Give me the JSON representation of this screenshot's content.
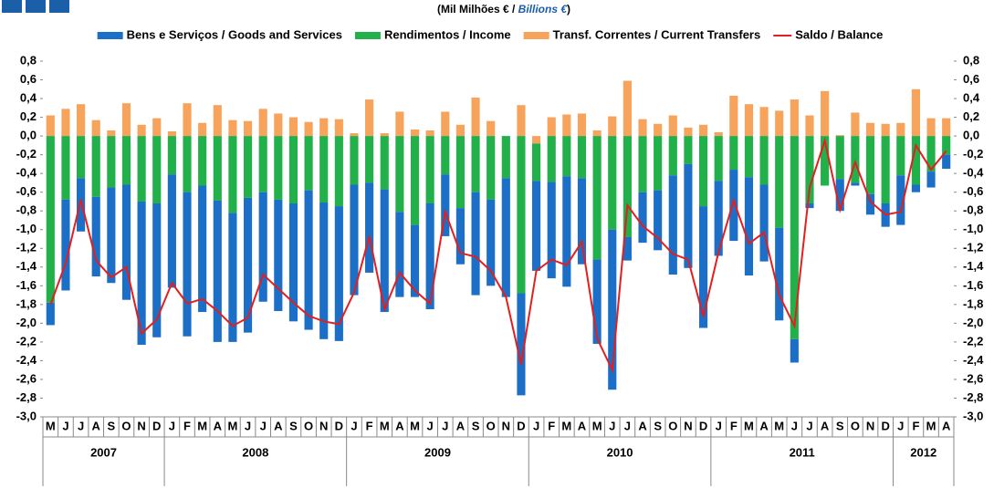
{
  "chart_data": {
    "type": "bar",
    "title": [
      "(Mil Milhões € / ",
      "Billions €",
      ")"
    ],
    "category_groups": [
      {
        "label": "2007",
        "categories": [
          "M",
          "J",
          "J",
          "A",
          "S",
          "O",
          "N",
          "D"
        ]
      },
      {
        "label": "2008",
        "categories": [
          "J",
          "F",
          "M",
          "A",
          "M",
          "J",
          "J",
          "A",
          "S",
          "O",
          "N",
          "D"
        ]
      },
      {
        "label": "2009",
        "categories": [
          "J",
          "F",
          "M",
          "A",
          "M",
          "J",
          "J",
          "A",
          "S",
          "O",
          "N",
          "D"
        ]
      },
      {
        "label": "2010",
        "categories": [
          "J",
          "F",
          "M",
          "A",
          "M",
          "J",
          "J",
          "A",
          "S",
          "O",
          "N",
          "D"
        ]
      },
      {
        "label": "2011",
        "categories": [
          "J",
          "F",
          "M",
          "A",
          "M",
          "J",
          "J",
          "A",
          "S",
          "O",
          "N",
          "D"
        ]
      },
      {
        "label": "2012",
        "categories": [
          "J",
          "F",
          "M",
          "A"
        ]
      }
    ],
    "series": [
      {
        "name": "Bens e Serviços / Goods and Services",
        "color": "#1c6fc6",
        "values": [
          -0.24,
          -0.97,
          -0.57,
          -0.85,
          -1.02,
          -1.23,
          -1.53,
          -1.43,
          -1.21,
          -1.54,
          -1.35,
          -1.51,
          -1.38,
          -1.44,
          -1.17,
          -1.19,
          -1.26,
          -1.49,
          -1.46,
          -1.44,
          -1.18,
          -0.96,
          -1.31,
          -0.91,
          -0.77,
          -1.13,
          -0.66,
          -0.6,
          -1.1,
          -0.92,
          -1.27,
          -1.09,
          -0.96,
          -1.03,
          -1.18,
          -0.92,
          -0.9,
          -1.71,
          -0.25,
          -0.54,
          -0.64,
          -1.06,
          -1.11,
          -1.3,
          -0.8,
          -0.76,
          -1.05,
          -0.82,
          -0.99,
          -0.25,
          -0.05,
          0,
          -0.34,
          -0.03,
          -0.22,
          -0.25,
          -0.53,
          -0.08,
          -0.17,
          -0.15
        ]
      },
      {
        "name": "Rendimentos / Income",
        "color": "#21b04a",
        "values": [
          -1.78,
          -0.68,
          -0.45,
          -0.65,
          -0.55,
          -0.52,
          -0.7,
          -0.72,
          -0.41,
          -0.6,
          -0.53,
          -0.69,
          -0.82,
          -0.66,
          -0.6,
          -0.68,
          -0.72,
          -0.58,
          -0.71,
          -0.75,
          -0.52,
          -0.5,
          -0.57,
          -0.81,
          -0.95,
          -0.72,
          -0.41,
          -0.77,
          -0.6,
          -0.68,
          -0.45,
          -1.68,
          -0.4,
          -0.49,
          -0.43,
          -0.45,
          -1.32,
          -1.0,
          -1.08,
          -0.6,
          -0.58,
          -0.42,
          -0.3,
          -0.75,
          -0.48,
          -0.36,
          -0.44,
          -0.52,
          -0.98,
          -2.17,
          -0.72,
          -0.53,
          -0.46,
          -0.5,
          -0.62,
          -0.72,
          -0.42,
          -0.52,
          -0.38,
          -0.2
        ]
      },
      {
        "name": "Transf. Correntes / Current Transfers",
        "color": "#f7a35c",
        "values": [
          0.22,
          0.29,
          0.34,
          0.17,
          0.06,
          0.35,
          0.12,
          0.19,
          0.05,
          0.35,
          0.14,
          0.33,
          0.17,
          0.16,
          0.29,
          0.24,
          0.2,
          0.15,
          0.19,
          0.18,
          0.03,
          0.39,
          0.03,
          0.26,
          0.07,
          0.06,
          0.26,
          0.12,
          0.41,
          0.16,
          0,
          0.33,
          -0.08,
          0.2,
          0.23,
          0.24,
          0.06,
          0.21,
          0.59,
          0.18,
          0.13,
          0.22,
          0.09,
          0.12,
          0.04,
          0.43,
          0.34,
          0.31,
          0.27,
          0.39,
          0.22,
          0.48,
          0.01,
          0.25,
          0.14,
          0.13,
          0.14,
          0.5,
          0.19,
          0.19
        ]
      },
      {
        "name": "Saldo / Balance",
        "type": "line",
        "color": "#e41e1e",
        "values": [
          -1.8,
          -1.36,
          -0.68,
          -1.33,
          -1.51,
          -1.4,
          -2.11,
          -1.96,
          -1.57,
          -1.79,
          -1.74,
          -1.87,
          -2.03,
          -1.94,
          -1.48,
          -1.63,
          -1.78,
          -1.92,
          -1.98,
          -2.01,
          -1.67,
          -1.07,
          -1.85,
          -1.46,
          -1.65,
          -1.79,
          -0.81,
          -1.25,
          -1.29,
          -1.44,
          -1.72,
          -2.44,
          -1.44,
          -1.32,
          -1.38,
          -1.13,
          -2.16,
          -2.5,
          -0.74,
          -0.96,
          -1.09,
          -1.26,
          -1.32,
          -1.93,
          -1.24,
          -0.69,
          -1.15,
          -1.03,
          -1.7,
          -2.03,
          -0.55,
          -0.05,
          -0.79,
          -0.28,
          -0.7,
          -0.84,
          -0.81,
          -0.1,
          -0.36,
          -0.16
        ]
      }
    ],
    "ylim": [
      -3.0,
      0.8
    ],
    "yticks": [
      {
        "value": 0.8,
        "label": "0,8"
      },
      {
        "value": 0.6,
        "label": "0,6"
      },
      {
        "value": 0.4,
        "label": "0,4"
      },
      {
        "value": 0.2,
        "label": "0,2"
      },
      {
        "value": 0,
        "label": "0,0"
      },
      {
        "value": -0.2,
        "label": "-0,2"
      },
      {
        "value": -0.4,
        "label": "-0,4"
      },
      {
        "value": -0.6,
        "label": "-0,6"
      },
      {
        "value": -0.8,
        "label": "-0,8"
      },
      {
        "value": -1.0,
        "label": "-1,0"
      },
      {
        "value": -1.2,
        "label": "-1,2"
      },
      {
        "value": -1.4,
        "label": "-1,4"
      },
      {
        "value": -1.6,
        "label": "-1,6"
      },
      {
        "value": -1.8,
        "label": "-1,8"
      },
      {
        "value": -2.0,
        "label": "-2,0"
      },
      {
        "value": -2.2,
        "label": "-2,2"
      },
      {
        "value": -2.4,
        "label": "-2,4"
      },
      {
        "value": -2.6,
        "label": "-2,6"
      },
      {
        "value": -2.8,
        "label": "-2,8"
      },
      {
        "value": -3.0,
        "label": "-3,0"
      }
    ],
    "grid": false
  }
}
